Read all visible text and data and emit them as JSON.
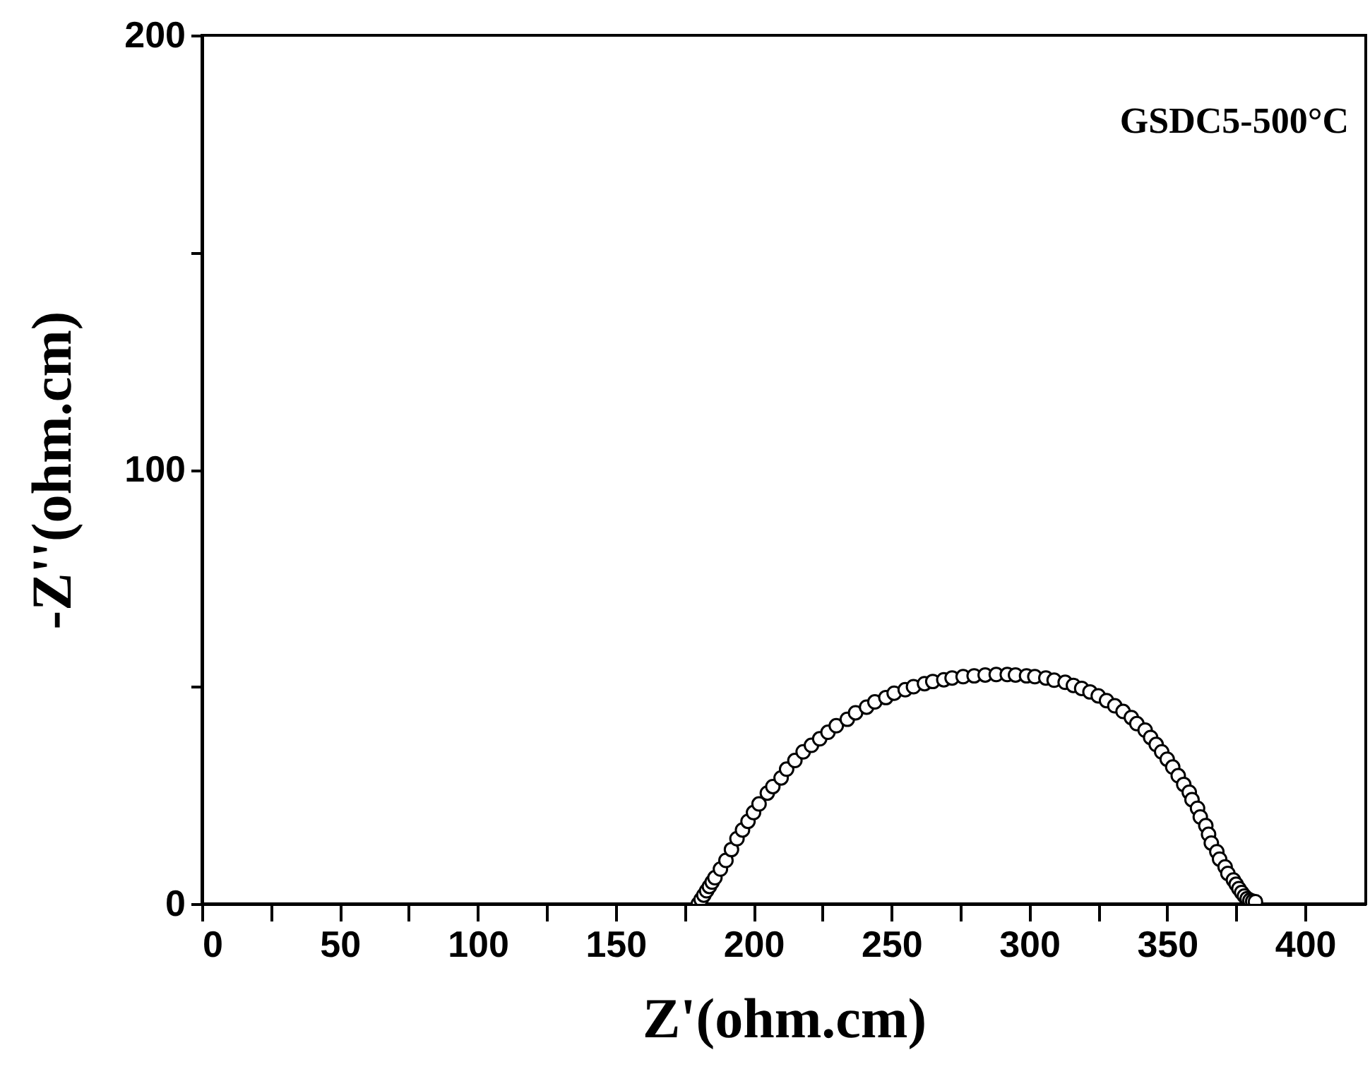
{
  "chart_data": {
    "type": "scatter",
    "xlabel": "Z'(ohm.cm)",
    "ylabel": "-Z''(ohm.cm)",
    "annotations": [
      "GSDC5-500°C"
    ],
    "xlim": [
      0,
      422
    ],
    "ylim": [
      0,
      200
    ],
    "xticks": [
      0,
      {
        "value": 25,
        "label": null
      },
      50,
      {
        "value": 75,
        "label": null
      },
      100,
      {
        "value": 125,
        "label": null
      },
      150,
      {
        "value": 175,
        "label": null
      },
      200,
      {
        "value": 225,
        "label": null
      },
      250,
      {
        "value": 275,
        "label": null
      },
      300,
      {
        "value": 325,
        "label": null
      },
      350,
      {
        "value": 375,
        "label": null
      },
      400
    ],
    "yticks": [
      0,
      {
        "value": 50,
        "label": null
      },
      100,
      {
        "value": 150,
        "label": null
      },
      200
    ],
    "marker": "circle",
    "grid": false,
    "legend": false,
    "series": [
      {
        "color": "#000000",
        "x": [
          180,
          181,
          182,
          183,
          184,
          185,
          186,
          188,
          190,
          192,
          194,
          196,
          198,
          200,
          202,
          205,
          207,
          210,
          212,
          215,
          218,
          221,
          224,
          227,
          230,
          234,
          237,
          241,
          244,
          248,
          251,
          255,
          258,
          262,
          265,
          269,
          272,
          276,
          280,
          284,
          288,
          292,
          295,
          299,
          302,
          306,
          309,
          313,
          316,
          319,
          322,
          325,
          328,
          331,
          334,
          337,
          339,
          342,
          344,
          346,
          348,
          350,
          352,
          354,
          356,
          358,
          359,
          361,
          362,
          364,
          365,
          366,
          368,
          369,
          371,
          372,
          374,
          375,
          376,
          377,
          378,
          379,
          380,
          381,
          382
        ],
        "values": [
          0,
          1,
          2,
          3,
          4,
          5,
          6,
          8,
          10,
          12.5,
          15,
          17,
          19,
          21,
          23,
          25.5,
          27,
          29,
          31,
          33,
          35,
          36.5,
          38,
          39.5,
          41,
          42.5,
          44,
          45.3,
          46.5,
          47.5,
          48.5,
          49.3,
          50,
          50.7,
          51.2,
          51.6,
          52,
          52.3,
          52.5,
          52.7,
          52.8,
          52.8,
          52.7,
          52.5,
          52.3,
          52,
          51.5,
          51,
          50.3,
          49.6,
          48.8,
          47.9,
          46.8,
          45.6,
          44.3,
          42.9,
          41.5,
          40,
          38.3,
          36.7,
          35,
          33.3,
          31.5,
          29.5,
          27.5,
          25.7,
          24,
          22,
          20,
          18,
          16,
          14,
          12,
          10.3,
          8.5,
          7,
          5.5,
          4.5,
          3.5,
          2.6,
          1.8,
          1.2,
          0.8,
          0.6,
          0.5
        ]
      }
    ]
  }
}
